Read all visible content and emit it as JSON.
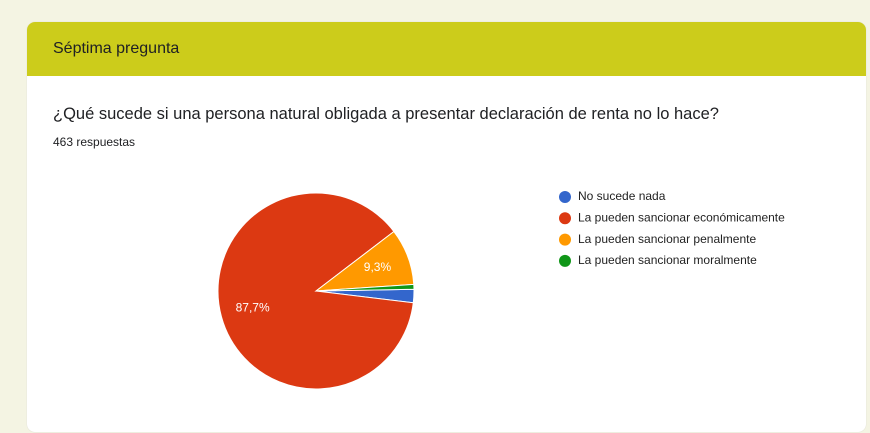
{
  "header": {
    "title": "Séptima pregunta"
  },
  "chart_data": {
    "type": "pie",
    "title": "¿Qué sucede si una persona natural obligada a presentar declaración de renta no lo hace?",
    "subtitle": "463 respuestas",
    "categories": [
      "No sucede nada",
      "La pueden sancionar económicamente",
      "La pueden sancionar penalmente",
      "La pueden sancionar moralmente"
    ],
    "values": [
      2.2,
      87.7,
      9.3,
      0.8
    ],
    "value_labels": [
      null,
      "87,7%",
      "9,3%",
      null
    ],
    "colors": [
      "#3366cc",
      "#dc3912",
      "#ff9900",
      "#109618"
    ],
    "legend": "right"
  }
}
